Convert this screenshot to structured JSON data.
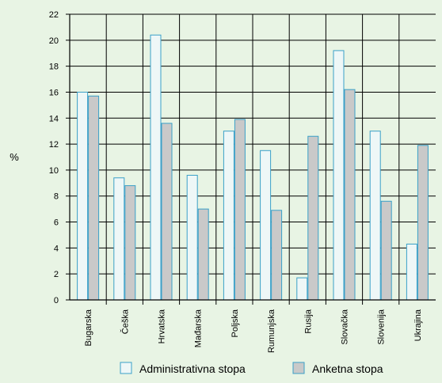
{
  "chart_data": {
    "type": "bar",
    "title": "",
    "xlabel": "",
    "ylabel": "%",
    "ylim": [
      0,
      22
    ],
    "y_ticks": [
      0,
      2,
      4,
      6,
      8,
      10,
      12,
      14,
      16,
      18,
      20,
      22
    ],
    "grid": true,
    "legend_position": "bottom",
    "categories": [
      "Bugarska",
      "Češka",
      "Hrvatska",
      "Mađarska",
      "Poljska",
      "Rumunjska",
      "Rusija",
      "Slovačka",
      "Slovenija",
      "Ukrajina"
    ],
    "series": [
      {
        "name": "Administrativna stopa",
        "color": "#eef7f7",
        "stroke": "#3aa0c8",
        "values": [
          16.0,
          9.4,
          20.4,
          9.6,
          13.0,
          11.5,
          1.7,
          19.2,
          13.0,
          4.3
        ]
      },
      {
        "name": "Anketna stopa",
        "color": "#c9c9c9",
        "stroke": "#3aa0c8",
        "values": [
          15.7,
          8.8,
          13.6,
          7.0,
          13.9,
          6.9,
          12.6,
          16.2,
          7.6,
          11.9
        ]
      }
    ]
  }
}
